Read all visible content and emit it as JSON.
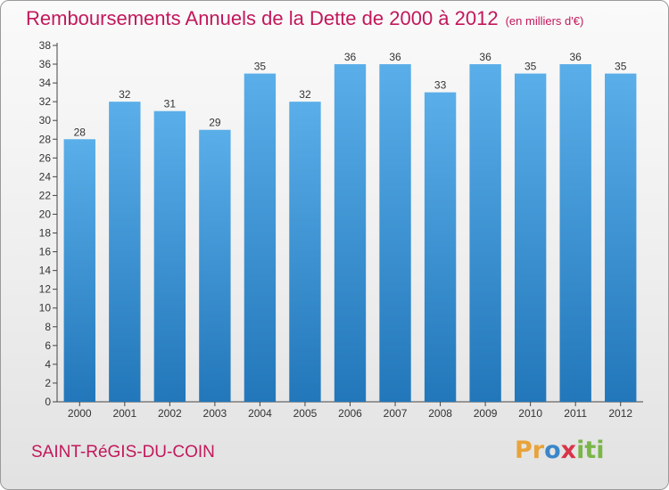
{
  "chart_data": {
    "type": "bar",
    "title": "Remboursements Annuels de la Dette de 2000 à 2012",
    "subtitle": "(en milliers d'€)",
    "categories": [
      "2000",
      "2001",
      "2002",
      "2003",
      "2004",
      "2005",
      "2006",
      "2007",
      "2008",
      "2009",
      "2010",
      "2011",
      "2012"
    ],
    "values": [
      28,
      32,
      31,
      29,
      35,
      32,
      36,
      36,
      33,
      36,
      35,
      36,
      35
    ],
    "ylim": [
      0,
      38
    ],
    "yticks": [
      0,
      2,
      4,
      6,
      8,
      10,
      12,
      14,
      16,
      18,
      20,
      22,
      24,
      26,
      28,
      30,
      32,
      34,
      36,
      38
    ],
    "grid": false,
    "bar_color": "#2f86cc"
  },
  "footer": {
    "commune": "SAINT-RéGIS-DU-COIN",
    "brand": [
      "Pr",
      "o",
      "x",
      "iti"
    ]
  }
}
